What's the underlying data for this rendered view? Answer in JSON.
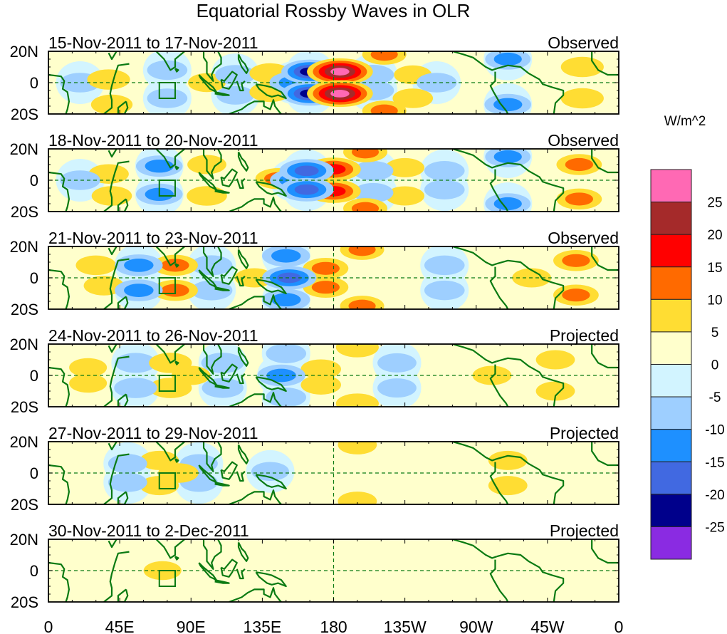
{
  "chart_data": {
    "type": "heatmap",
    "title": "Equatorial Rossby Waves in OLR",
    "units_label": "W/m^2",
    "xlabel": "",
    "ylabel": "",
    "x_range_deg_east": [
      0,
      360
    ],
    "y_range_deg": [
      -20,
      20
    ],
    "x_ticks": [
      {
        "lon": 0,
        "label": "0"
      },
      {
        "lon": 45,
        "label": "45E"
      },
      {
        "lon": 90,
        "label": "90E"
      },
      {
        "lon": 135,
        "label": "135E"
      },
      {
        "lon": 180,
        "label": "180"
      },
      {
        "lon": 225,
        "label": "135W"
      },
      {
        "lon": 270,
        "label": "90W"
      },
      {
        "lon": 315,
        "label": "45W"
      },
      {
        "lon": 360,
        "label": "0"
      }
    ],
    "y_ticks": [
      {
        "lat": 20,
        "label": "20N"
      },
      {
        "lat": 0,
        "label": "0"
      },
      {
        "lat": -20,
        "label": "20S"
      }
    ],
    "reference_lines": {
      "equator_dashed": true,
      "dateline_dashed_lon": 180
    },
    "region_box": {
      "lon": [
        70,
        80
      ],
      "lat": [
        -10,
        0
      ]
    },
    "colorbar": {
      "levels": [
        25,
        20,
        15,
        10,
        5,
        0,
        -5,
        -10,
        -15,
        -20,
        -25
      ],
      "colors": [
        "#ff69b4",
        "#a52a2a",
        "#ff0000",
        "#ff6a00",
        "#ffdd33",
        "#ffffcc",
        "#d2f4ff",
        "#9ecfff",
        "#1e90ff",
        "#4169e1",
        "#00008b",
        "#8a2be2"
      ]
    },
    "panels": [
      {
        "date_range": "15-Nov-2011 to 17-Nov-2011",
        "status": "Observed",
        "anomalies": [
          {
            "lon": 184,
            "lat": 7,
            "value": 27
          },
          {
            "lon": 184,
            "lat": -7,
            "value": 27
          },
          {
            "lon": 165,
            "lat": 7,
            "value": -20
          },
          {
            "lon": 165,
            "lat": -7,
            "value": -20
          },
          {
            "lon": 155,
            "lat": 0,
            "value": -14
          },
          {
            "lon": 140,
            "lat": 6,
            "value": 8
          },
          {
            "lon": 140,
            "lat": -6,
            "value": 8
          },
          {
            "lon": 212,
            "lat": 18,
            "value": 10
          },
          {
            "lon": 212,
            "lat": -18,
            "value": 10
          },
          {
            "lon": 205,
            "lat": 5,
            "value": -8
          },
          {
            "lon": 205,
            "lat": -5,
            "value": -8
          },
          {
            "lon": 230,
            "lat": 5,
            "value": 5
          },
          {
            "lon": 230,
            "lat": -10,
            "value": 7
          },
          {
            "lon": 245,
            "lat": 0,
            "value": -7
          },
          {
            "lon": 290,
            "lat": 15,
            "value": -11
          },
          {
            "lon": 290,
            "lat": -14,
            "value": -12
          },
          {
            "lon": 337,
            "lat": 10,
            "value": 9
          },
          {
            "lon": 337,
            "lat": -10,
            "value": 9
          },
          {
            "lon": 75,
            "lat": 8,
            "value": -7
          },
          {
            "lon": 75,
            "lat": -10,
            "value": -7
          },
          {
            "lon": 38,
            "lat": 2,
            "value": 9
          },
          {
            "lon": 40,
            "lat": -14,
            "value": 8
          },
          {
            "lon": 20,
            "lat": 0,
            "value": -7
          },
          {
            "lon": 100,
            "lat": 0,
            "value": 5
          },
          {
            "lon": 118,
            "lat": 5,
            "value": -7
          },
          {
            "lon": 118,
            "lat": -8,
            "value": -5
          }
        ]
      },
      {
        "date_range": "18-Nov-2011 to 20-Nov-2011",
        "status": "Observed",
        "anomalies": [
          {
            "lon": 180,
            "lat": 7,
            "value": 18
          },
          {
            "lon": 180,
            "lat": -7,
            "value": 18
          },
          {
            "lon": 163,
            "lat": 6,
            "value": -18
          },
          {
            "lon": 163,
            "lat": -6,
            "value": -18
          },
          {
            "lon": 155,
            "lat": 0,
            "value": -13
          },
          {
            "lon": 145,
            "lat": 1,
            "value": 11
          },
          {
            "lon": 200,
            "lat": 18,
            "value": 10
          },
          {
            "lon": 200,
            "lat": -18,
            "value": 10
          },
          {
            "lon": 205,
            "lat": 6,
            "value": -7
          },
          {
            "lon": 205,
            "lat": -8,
            "value": -7
          },
          {
            "lon": 225,
            "lat": 8,
            "value": 6
          },
          {
            "lon": 225,
            "lat": -10,
            "value": 6
          },
          {
            "lon": 250,
            "lat": 6,
            "value": -7
          },
          {
            "lon": 250,
            "lat": -6,
            "value": -7
          },
          {
            "lon": 290,
            "lat": 15,
            "value": -11
          },
          {
            "lon": 290,
            "lat": -15,
            "value": -11
          },
          {
            "lon": 335,
            "lat": 10,
            "value": 11
          },
          {
            "lon": 335,
            "lat": -12,
            "value": 11
          },
          {
            "lon": 70,
            "lat": 9,
            "value": -12
          },
          {
            "lon": 70,
            "lat": -9,
            "value": -12
          },
          {
            "lon": 100,
            "lat": 10,
            "value": 6
          },
          {
            "lon": 100,
            "lat": -10,
            "value": 7
          },
          {
            "lon": 38,
            "lat": 4,
            "value": 7
          },
          {
            "lon": 40,
            "lat": -10,
            "value": 7
          },
          {
            "lon": 20,
            "lat": 0,
            "value": -7
          }
        ]
      },
      {
        "date_range": "21-Nov-2011 to 23-Nov-2011",
        "status": "Observed",
        "anomalies": [
          {
            "lon": 152,
            "lat": 0,
            "value": -18
          },
          {
            "lon": 150,
            "lat": 14,
            "value": -13
          },
          {
            "lon": 150,
            "lat": -14,
            "value": -13
          },
          {
            "lon": 175,
            "lat": 6,
            "value": 11
          },
          {
            "lon": 175,
            "lat": -6,
            "value": 11
          },
          {
            "lon": 198,
            "lat": 18,
            "value": 10
          },
          {
            "lon": 198,
            "lat": -18,
            "value": 10
          },
          {
            "lon": 250,
            "lat": 8,
            "value": -7
          },
          {
            "lon": 250,
            "lat": -8,
            "value": -7
          },
          {
            "lon": 305,
            "lat": 0,
            "value": 6
          },
          {
            "lon": 333,
            "lat": 11,
            "value": 11
          },
          {
            "lon": 333,
            "lat": -11,
            "value": 11
          },
          {
            "lon": 80,
            "lat": 8,
            "value": 11
          },
          {
            "lon": 80,
            "lat": -8,
            "value": 11
          },
          {
            "lon": 57,
            "lat": 8,
            "value": -13
          },
          {
            "lon": 57,
            "lat": -8,
            "value": -13
          },
          {
            "lon": 103,
            "lat": 8,
            "value": -8
          },
          {
            "lon": 103,
            "lat": -8,
            "value": -8
          },
          {
            "lon": 30,
            "lat": 8,
            "value": 7
          },
          {
            "lon": 35,
            "lat": -5,
            "value": 7
          },
          {
            "lon": 130,
            "lat": 0,
            "value": 6
          }
        ]
      },
      {
        "date_range": "24-Nov-2011 to 26-Nov-2011",
        "status": "Projected",
        "anomalies": [
          {
            "lon": 147,
            "lat": 0,
            "value": -13
          },
          {
            "lon": 150,
            "lat": 14,
            "value": -7
          },
          {
            "lon": 150,
            "lat": -14,
            "value": -7
          },
          {
            "lon": 172,
            "lat": 4,
            "value": 7
          },
          {
            "lon": 172,
            "lat": -6,
            "value": 7
          },
          {
            "lon": 195,
            "lat": 18,
            "value": 9
          },
          {
            "lon": 195,
            "lat": -18,
            "value": 9
          },
          {
            "lon": 220,
            "lat": 8,
            "value": -6
          },
          {
            "lon": 220,
            "lat": -8,
            "value": -6
          },
          {
            "lon": 280,
            "lat": 0,
            "value": 6
          },
          {
            "lon": 320,
            "lat": 10,
            "value": 6
          },
          {
            "lon": 320,
            "lat": -10,
            "value": 6
          },
          {
            "lon": 77,
            "lat": 8,
            "value": 9
          },
          {
            "lon": 77,
            "lat": -8,
            "value": 9
          },
          {
            "lon": 90,
            "lat": 0,
            "value": 6
          },
          {
            "lon": 55,
            "lat": 8,
            "value": -8
          },
          {
            "lon": 55,
            "lat": -8,
            "value": -9
          },
          {
            "lon": 110,
            "lat": 8,
            "value": -9
          },
          {
            "lon": 110,
            "lat": -8,
            "value": -8
          },
          {
            "lon": 25,
            "lat": 5,
            "value": 5
          },
          {
            "lon": 25,
            "lat": -5,
            "value": 5
          }
        ]
      },
      {
        "date_range": "27-Nov-2011 to 29-Nov-2011",
        "status": "Projected",
        "anomalies": [
          {
            "lon": 82,
            "lat": 0,
            "value": 7
          },
          {
            "lon": 70,
            "lat": 8,
            "value": 6
          },
          {
            "lon": 70,
            "lat": -8,
            "value": 6
          },
          {
            "lon": 50,
            "lat": 6,
            "value": -6
          },
          {
            "lon": 50,
            "lat": -6,
            "value": -6
          },
          {
            "lon": 95,
            "lat": 6,
            "value": -5
          },
          {
            "lon": 95,
            "lat": -6,
            "value": -5
          },
          {
            "lon": 140,
            "lat": 1,
            "value": -5
          },
          {
            "lon": 195,
            "lat": 18,
            "value": 6
          },
          {
            "lon": 195,
            "lat": -18,
            "value": 6
          },
          {
            "lon": 290,
            "lat": 8,
            "value": 6
          },
          {
            "lon": 290,
            "lat": -8,
            "value": 6
          }
        ]
      },
      {
        "date_range": "30-Nov-2011 to 2-Dec-2011",
        "status": "Projected",
        "anomalies": [
          {
            "lon": 72,
            "lat": 0,
            "value": 5
          }
        ]
      }
    ]
  }
}
